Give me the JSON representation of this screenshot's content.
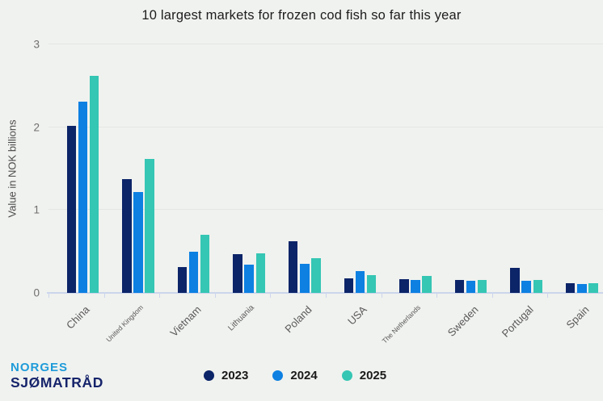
{
  "title": "10 largest markets for frozen cod fish so far this year",
  "logo": {
    "line1": "NORGES",
    "line2": "SJØMATRÅD"
  },
  "colors": {
    "background": "#f0f2ef",
    "gridline": "#e3e6e2",
    "axis_line": "#ccd6ec",
    "title_text": "#1d1d1d",
    "tick_text": "#6f6f6f",
    "category_text": "#595959",
    "legend_text": "#1a1a1a",
    "logo_blue": "#1e9bd9",
    "logo_navy": "#16246b",
    "series_2023": "#0c2468",
    "series_2024": "#0d80e2",
    "series_2025": "#35c6b4"
  },
  "chart_data": {
    "type": "bar",
    "title": "10 largest markets for frozen cod fish so far this year",
    "xlabel": "",
    "ylabel": "Value in NOK billions",
    "ylim": [
      0,
      3
    ],
    "yticks": [
      0,
      1,
      2,
      3
    ],
    "grid": true,
    "legend_position": "bottom",
    "categories": [
      "China",
      "United Kingdom",
      "Vietnam",
      "Lithuania",
      "Poland",
      "USA",
      "The Netherlands",
      "Sweden",
      "Portugal",
      "Spain"
    ],
    "series": [
      {
        "name": "2023",
        "color": "#0c2468",
        "values": [
          2.02,
          1.37,
          0.31,
          0.47,
          0.62,
          0.18,
          0.17,
          0.16,
          0.3,
          0.12
        ]
      },
      {
        "name": "2024",
        "color": "#0d80e2",
        "values": [
          2.31,
          1.22,
          0.5,
          0.34,
          0.35,
          0.26,
          0.16,
          0.15,
          0.15,
          0.11
        ]
      },
      {
        "name": "2025",
        "color": "#35c6b4",
        "values": [
          2.62,
          1.62,
          0.7,
          0.48,
          0.42,
          0.21,
          0.2,
          0.16,
          0.16,
          0.12
        ]
      }
    ]
  }
}
